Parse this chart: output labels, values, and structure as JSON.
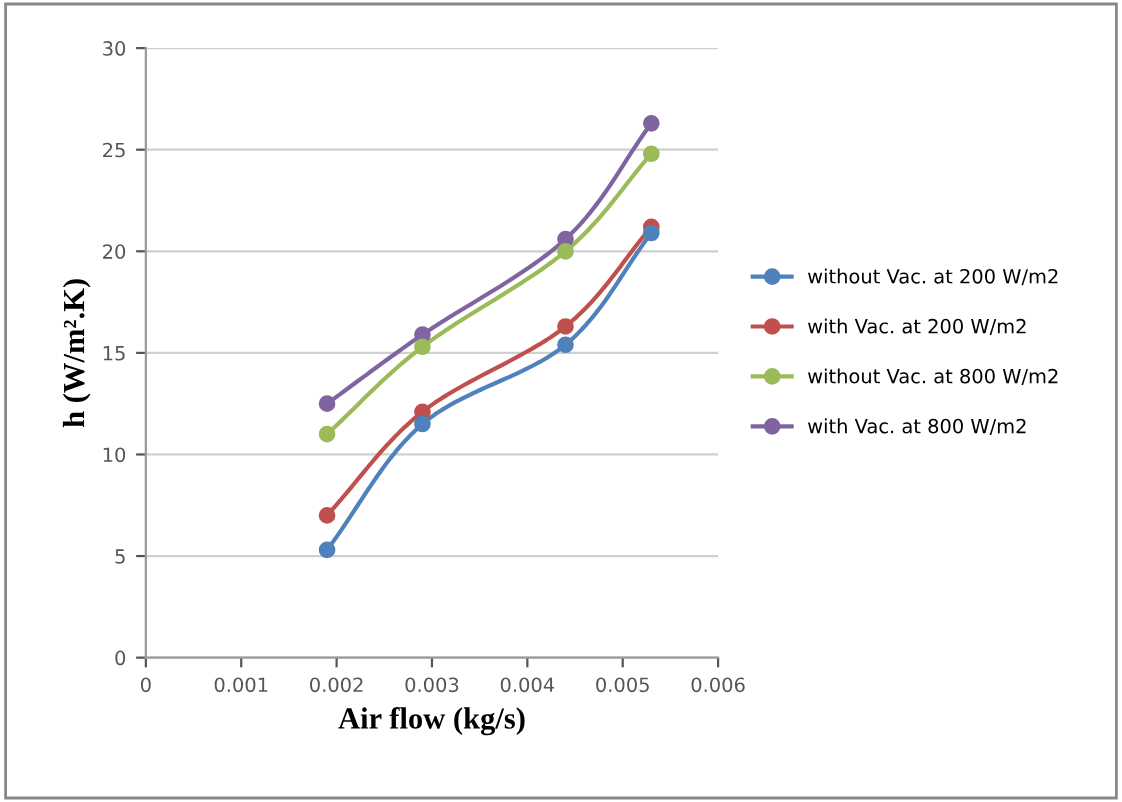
{
  "chart_data": {
    "type": "line",
    "xlabel": "Air flow (kg/s)",
    "ylabel": "h (W/m².K)",
    "x": [
      0.0019,
      0.0029,
      0.0044,
      0.0053
    ],
    "series": [
      {
        "name": "without Vac. at 200 W/m2",
        "color": "#4f81bd",
        "values": [
          5.3,
          11.5,
          15.4,
          20.9
        ]
      },
      {
        "name": "with Vac. at 200 W/m2",
        "color": "#c0504d",
        "values": [
          7.0,
          12.1,
          16.3,
          21.2
        ]
      },
      {
        "name": "without Vac. at 800 W/m2",
        "color": "#9bbb59",
        "values": [
          11.0,
          15.3,
          20.0,
          24.8
        ]
      },
      {
        "name": "with Vac. at 800 W/m2",
        "color": "#8064a2",
        "values": [
          12.5,
          15.9,
          20.6,
          26.3
        ]
      }
    ],
    "xlim": [
      0,
      0.006
    ],
    "xticks": [
      0,
      0.001,
      0.002,
      0.003,
      0.004,
      0.005,
      0.006
    ],
    "ylim": [
      0,
      30
    ],
    "yticks": [
      0,
      5,
      10,
      15,
      20,
      25,
      30
    ],
    "grid": "y",
    "legend": "right",
    "marker": "circle",
    "line_style": "solid"
  }
}
